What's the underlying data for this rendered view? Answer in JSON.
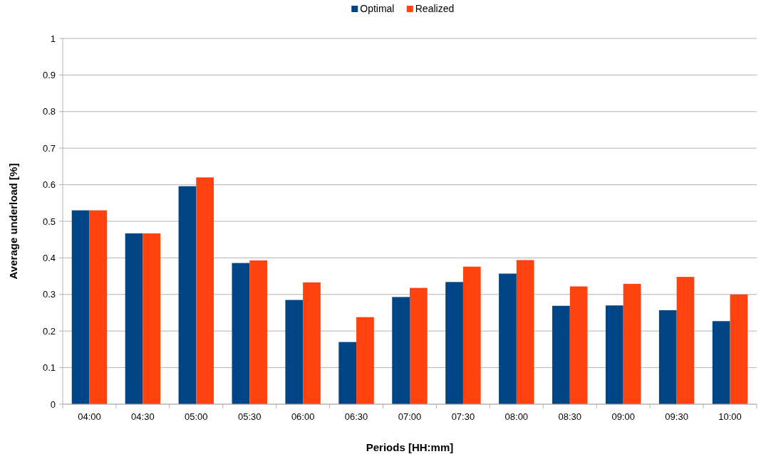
{
  "chart_data": {
    "type": "bar",
    "xlabel": "Periods [HH:mm]",
    "ylabel": "Average underload [%]",
    "categories": [
      "04:00",
      "04:30",
      "05:00",
      "05:30",
      "06:00",
      "06:30",
      "07:00",
      "07:30",
      "08:00",
      "08:30",
      "09:00",
      "09:30",
      "10:00"
    ],
    "series": [
      {
        "name": "Optimal",
        "color": "#004586",
        "values": [
          0.53,
          0.467,
          0.596,
          0.386,
          0.285,
          0.17,
          0.293,
          0.334,
          0.357,
          0.269,
          0.27,
          0.257,
          0.227
        ]
      },
      {
        "name": "Realized",
        "color": "#ff420e",
        "values": [
          0.53,
          0.467,
          0.62,
          0.393,
          0.333,
          0.238,
          0.318,
          0.376,
          0.394,
          0.322,
          0.329,
          0.348,
          0.3
        ]
      }
    ],
    "ylim": [
      0,
      1
    ],
    "yticks": [
      0,
      0.1,
      0.2,
      0.3,
      0.4,
      0.5,
      0.6,
      0.7,
      0.8,
      0.9,
      1
    ],
    "grid": "y",
    "legend": "top"
  }
}
